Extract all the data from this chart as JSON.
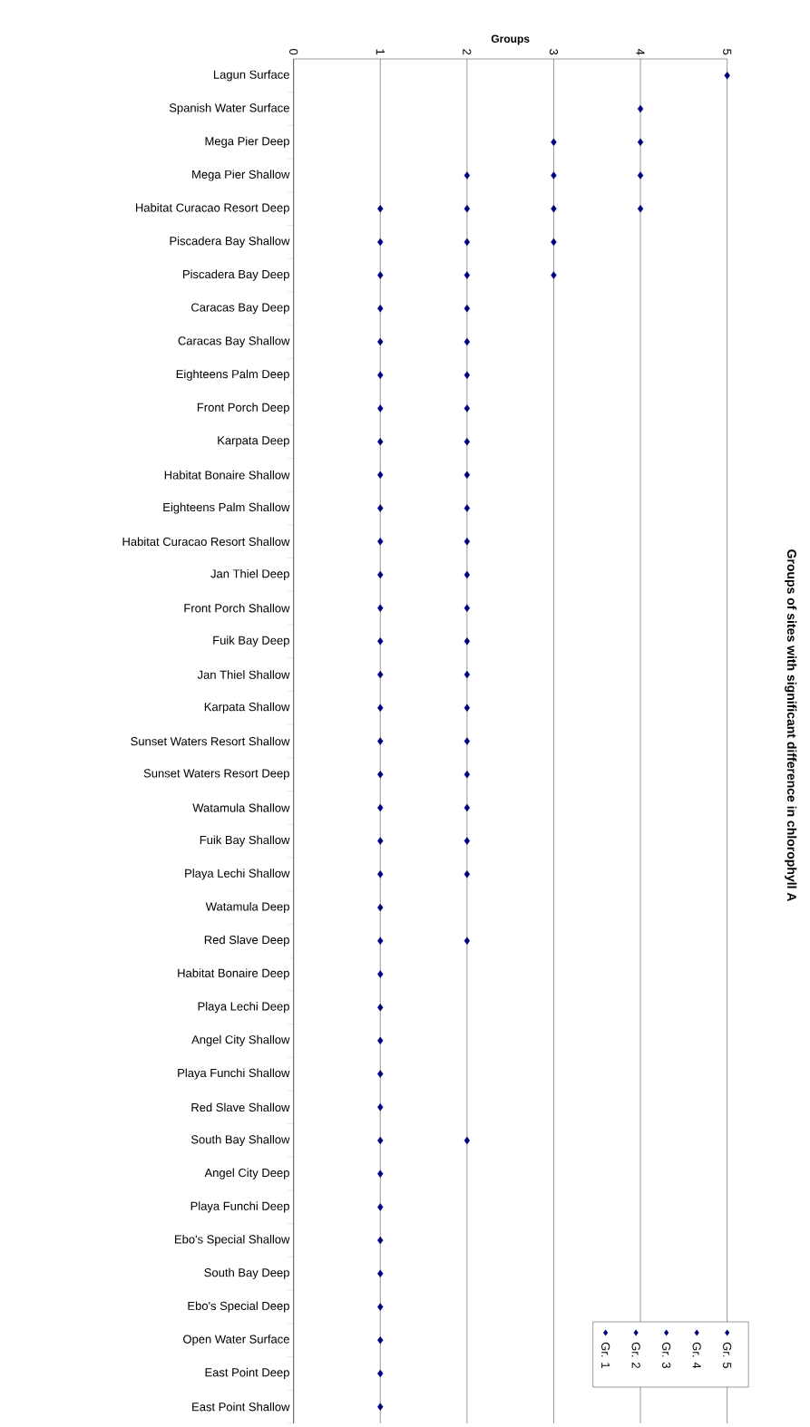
{
  "chart_data": {
    "type": "scatter",
    "orientation": "horizontal",
    "title": "Groups of sites with significant difference in chlorophyll A",
    "xlabel": "Groups",
    "categories": [
      "Lagun Surface",
      "Spanish Water Surface",
      "Mega Pier Deep",
      "Mega Pier Shallow",
      "Habitat Curacao Resort Deep",
      "Piscadera Bay Shallow",
      "Piscadera Bay Deep",
      "Caracas Bay Deep",
      "Caracas Bay Shallow",
      "Eighteens Palm Deep",
      "Front Porch Deep",
      "Karpata Deep",
      "Habitat Bonaire Shallow",
      "Eighteens Palm Shallow",
      "Habitat Curacao Resort Shallow",
      "Jan Thiel Deep",
      "Front Porch Shallow",
      "Fuik Bay Deep",
      "Jan Thiel Shallow",
      "Karpata Shallow",
      "Sunset Waters Resort Shallow",
      "Sunset Waters Resort Deep",
      "Watamula Shallow",
      "Fuik Bay Shallow",
      "Playa Lechi Shallow",
      "Watamula Deep",
      "Red Slave Deep",
      "Habitat Bonaire Deep",
      "Playa Lechi Deep",
      "Angel City Shallow",
      "Playa Funchi Shallow",
      "Red Slave Shallow",
      "South Bay Shallow",
      "Angel City Deep",
      "Playa Funchi Deep",
      "Ebo's Special Shallow",
      "South Bay Deep",
      "Ebo's Special Deep",
      "Open Water Surface",
      "East Point Deep",
      "East Point Shallow"
    ],
    "series": [
      {
        "name": "Gr. 1",
        "color": "#000080",
        "values": [
          null,
          null,
          null,
          null,
          1,
          1,
          1,
          1,
          1,
          1,
          1,
          1,
          1,
          1,
          1,
          1,
          1,
          1,
          1,
          1,
          1,
          1,
          1,
          1,
          1,
          1,
          1,
          1,
          1,
          1,
          1,
          1,
          1,
          1,
          1,
          1,
          1,
          1,
          1,
          1,
          1
        ]
      },
      {
        "name": "Gr. 2",
        "color": "#000080",
        "values": [
          null,
          null,
          null,
          2,
          2,
          2,
          2,
          2,
          2,
          2,
          2,
          2,
          2,
          2,
          2,
          2,
          2,
          2,
          2,
          2,
          2,
          2,
          2,
          2,
          2,
          null,
          2,
          null,
          null,
          null,
          null,
          null,
          2,
          null,
          null,
          null,
          null,
          null,
          null,
          null,
          null
        ]
      },
      {
        "name": "Gr. 3",
        "color": "#000080",
        "values": [
          null,
          null,
          3,
          3,
          3,
          3,
          3,
          null,
          null,
          null,
          null,
          null,
          null,
          null,
          null,
          null,
          null,
          null,
          null,
          null,
          null,
          null,
          null,
          null,
          null,
          null,
          null,
          null,
          null,
          null,
          null,
          null,
          null,
          null,
          null,
          null,
          null,
          null,
          null,
          null,
          null
        ]
      },
      {
        "name": "Gr. 4",
        "color": "#000080",
        "values": [
          null,
          4,
          4,
          4,
          4,
          null,
          null,
          null,
          null,
          null,
          null,
          null,
          null,
          null,
          null,
          null,
          null,
          null,
          null,
          null,
          null,
          null,
          null,
          null,
          null,
          null,
          null,
          null,
          null,
          null,
          null,
          null,
          null,
          null,
          null,
          null,
          null,
          null,
          null,
          null,
          null
        ]
      },
      {
        "name": "Gr. 5",
        "color": "#000080",
        "values": [
          5,
          null,
          null,
          null,
          null,
          null,
          null,
          null,
          null,
          null,
          null,
          null,
          null,
          null,
          null,
          null,
          null,
          null,
          null,
          null,
          null,
          null,
          null,
          null,
          null,
          null,
          null,
          null,
          null,
          null,
          null,
          null,
          null,
          null,
          null,
          null,
          null,
          null,
          null,
          null,
          null
        ]
      }
    ],
    "xlim": [
      0,
      5
    ],
    "xticks": [
      0,
      1,
      2,
      3,
      4,
      5
    ],
    "grid": "x",
    "legend": "bottom right",
    "marker": "diamond"
  }
}
